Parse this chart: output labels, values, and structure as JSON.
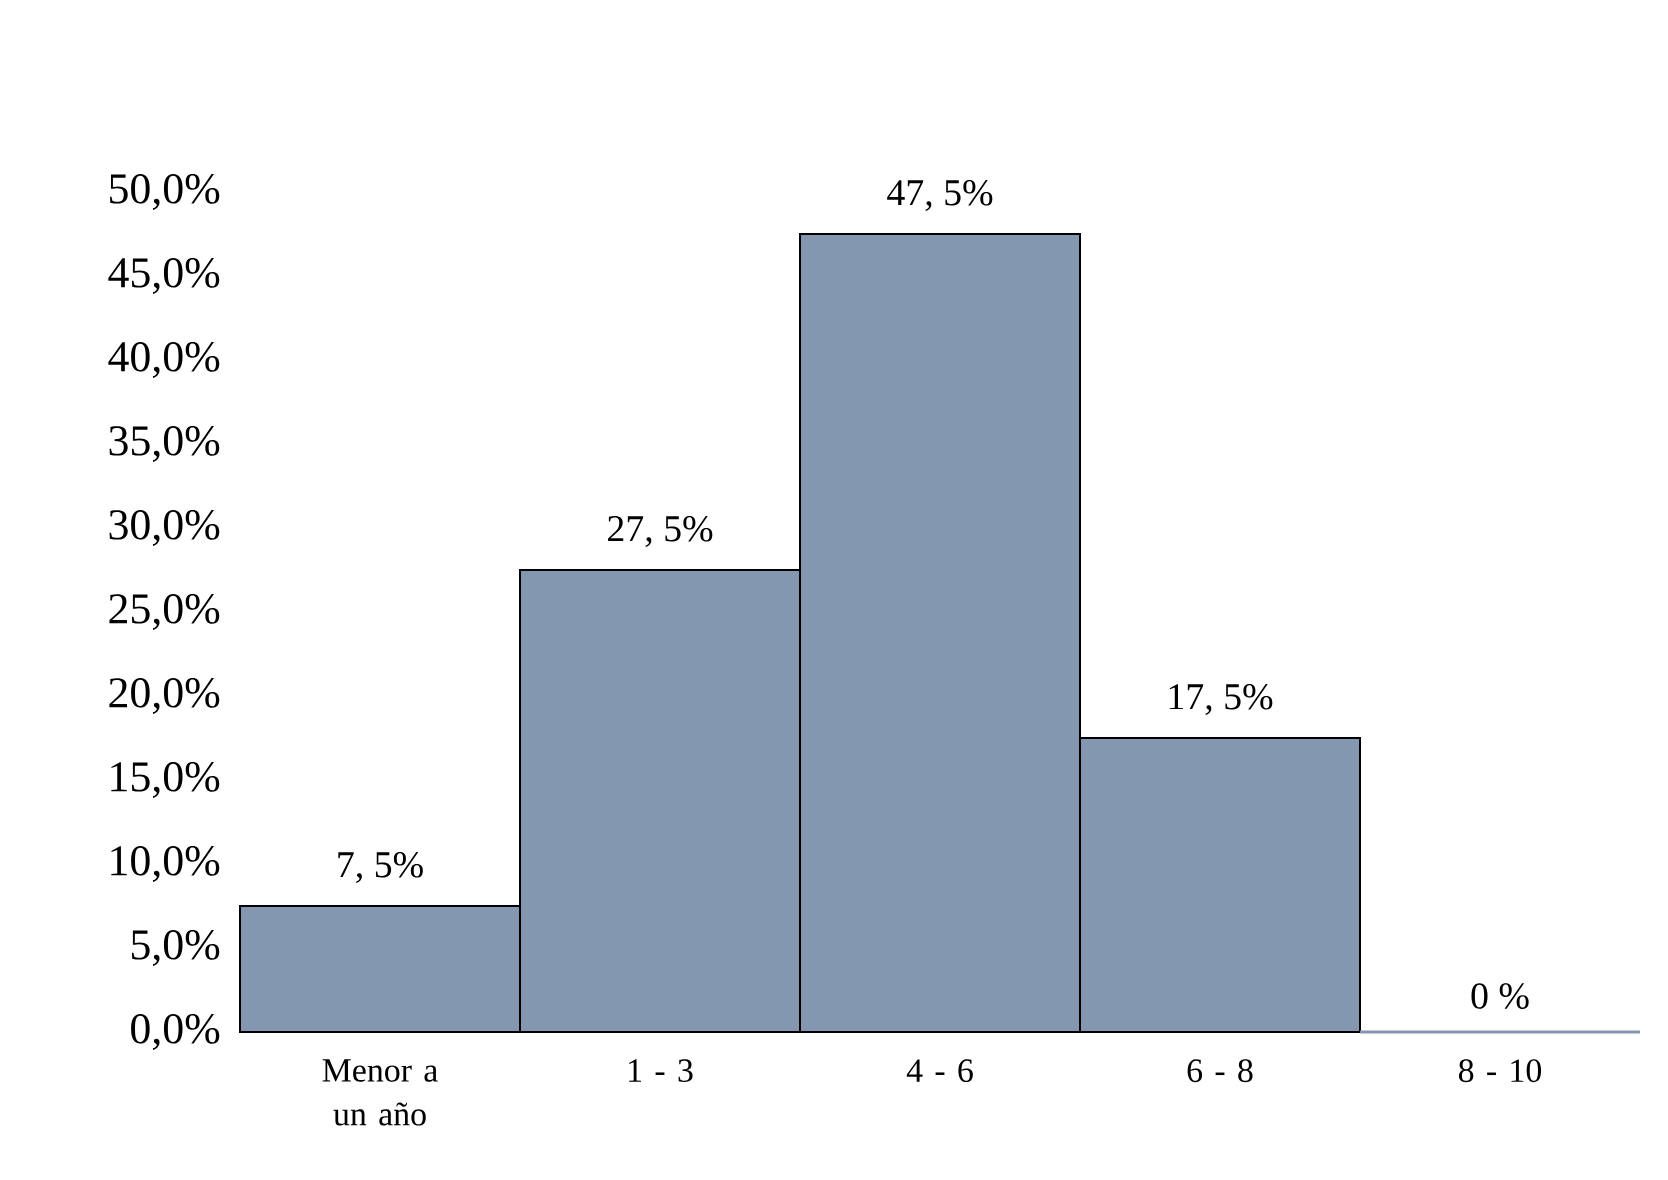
{
  "chart_data": {
    "type": "bar",
    "categories": [
      "Menor a un año",
      "1 - 3",
      "4 - 6",
      "6 - 8",
      "8 - 10"
    ],
    "values": [
      7.5,
      27.5,
      47.5,
      17.5,
      0
    ],
    "value_labels": [
      "7, 5%",
      "27, 5%",
      "47, 5%",
      "17, 5%",
      "0 %"
    ],
    "color": "#8497b0",
    "ylim": [
      0,
      50
    ],
    "yticks": [
      {
        "value": 0,
        "label": "0,0%"
      },
      {
        "value": 5,
        "label": "5,0%"
      },
      {
        "value": 10,
        "label": "10,0%"
      },
      {
        "value": 15,
        "label": "15,0%"
      },
      {
        "value": 20,
        "label": "20,0%"
      },
      {
        "value": 25,
        "label": "25,0%"
      },
      {
        "value": 30,
        "label": "30,0%"
      },
      {
        "value": 35,
        "label": "35,0%"
      },
      {
        "value": 40,
        "label": "40,0%"
      },
      {
        "value": 45,
        "label": "45,0%"
      },
      {
        "value": 50,
        "label": "50,0%"
      }
    ]
  }
}
